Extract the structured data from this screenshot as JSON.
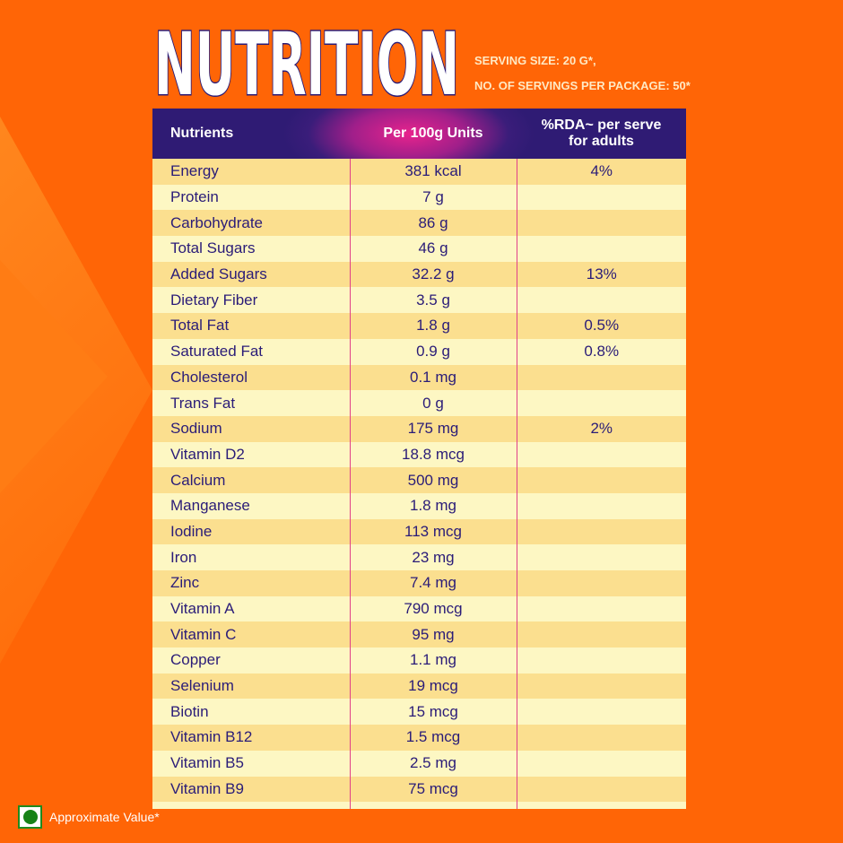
{
  "title": "NUTRITION",
  "serving_size": "SERVING SIZE: 20 G*,",
  "servings_per_package": "NO. OF SERVINGS PER PACKAGE: 50*",
  "table": {
    "headers": [
      "Nutrients",
      "Per 100g Units",
      "%RDA~ per serve for adults"
    ],
    "rows": [
      [
        "Energy",
        "381 kcal",
        "4%"
      ],
      [
        "Protein",
        "7 g",
        ""
      ],
      [
        "Carbohydrate",
        "86 g",
        ""
      ],
      [
        "Total Sugars",
        "46 g",
        ""
      ],
      [
        "Added Sugars",
        "32.2 g",
        "13%"
      ],
      [
        "Dietary Fiber",
        "3.5 g",
        ""
      ],
      [
        "Total Fat",
        "1.8 g",
        "0.5%"
      ],
      [
        "Saturated Fat",
        "0.9 g",
        "0.8%"
      ],
      [
        "Cholesterol",
        "0.1 mg",
        ""
      ],
      [
        "Trans Fat",
        "0 g",
        ""
      ],
      [
        "Sodium",
        "175 mg",
        "2%"
      ],
      [
        "Vitamin D2",
        "18.8 mcg",
        ""
      ],
      [
        "Calcium",
        "500 mg",
        ""
      ],
      [
        "Manganese",
        "1.8 mg",
        ""
      ],
      [
        "Iodine",
        "113 mcg",
        ""
      ],
      [
        "Iron",
        "23 mg",
        ""
      ],
      [
        "Zinc",
        "7.4 mg",
        ""
      ],
      [
        "Vitamin A",
        "790 mcg",
        ""
      ],
      [
        "Vitamin C",
        "95 mg",
        ""
      ],
      [
        "Copper",
        "1.1 mg",
        ""
      ],
      [
        "Selenium",
        "19 mcg",
        ""
      ],
      [
        "Biotin",
        "15 mcg",
        ""
      ],
      [
        "Vitamin B12",
        "1.5 mcg",
        ""
      ],
      [
        "Vitamin B5",
        "2.5 mg",
        ""
      ],
      [
        "Vitamin B9",
        "75 mcg",
        ""
      ]
    ]
  },
  "footer": {
    "icon": "veg-mark-icon",
    "label": "Approximate Value*"
  },
  "colors": {
    "background": "#ff6506",
    "header": "#2f1b74",
    "accent": "#e8238c",
    "text": "#2a1c78",
    "row_dark": "#fbdf8f",
    "row_light": "#fdf7c3"
  }
}
